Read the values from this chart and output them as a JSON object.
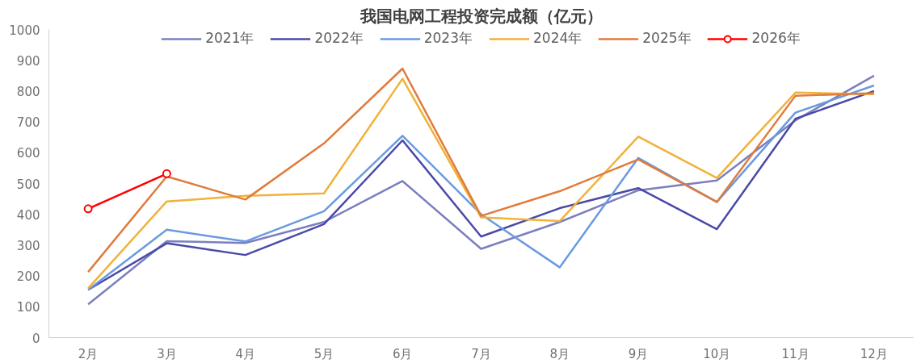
{
  "chart_data": {
    "type": "line",
    "title": "我国电网工程投资完成额（亿元）",
    "categories": [
      "2月",
      "3月",
      "4月",
      "5月",
      "6月",
      "7月",
      "8月",
      "9月",
      "10月",
      "11月",
      "12月"
    ],
    "ylim": [
      0,
      1000
    ],
    "yticks": [
      0,
      100,
      200,
      300,
      400,
      500,
      600,
      700,
      800,
      900,
      1000
    ],
    "grid": false,
    "legend": "top",
    "marker": "none",
    "series": [
      {
        "name": "2021年",
        "color": "#7b7fbf",
        "values": [
          108,
          313,
          307,
          375,
          508,
          288,
          375,
          478,
          510,
          705,
          850
        ]
      },
      {
        "name": "2022年",
        "color": "#4a4aa8",
        "values": [
          155,
          306,
          268,
          368,
          640,
          328,
          420,
          485,
          352,
          710,
          800
        ]
      },
      {
        "name": "2023年",
        "color": "#6a9ae0",
        "values": [
          155,
          350,
          312,
          410,
          655,
          400,
          228,
          583,
          440,
          730,
          818
        ]
      },
      {
        "name": "2024年",
        "color": "#f0b23a",
        "values": [
          160,
          442,
          460,
          468,
          840,
          390,
          378,
          652,
          518,
          795,
          790
        ]
      },
      {
        "name": "2025年",
        "color": "#e07b3c",
        "values": [
          213,
          523,
          448,
          630,
          873,
          395,
          475,
          578,
          440,
          785,
          793
        ]
      },
      {
        "name": "2026年",
        "color": "#ff0000",
        "marker": "circle",
        "values": [
          418,
          532,
          null,
          null,
          null,
          null,
          null,
          null,
          null,
          null,
          null
        ]
      }
    ]
  }
}
